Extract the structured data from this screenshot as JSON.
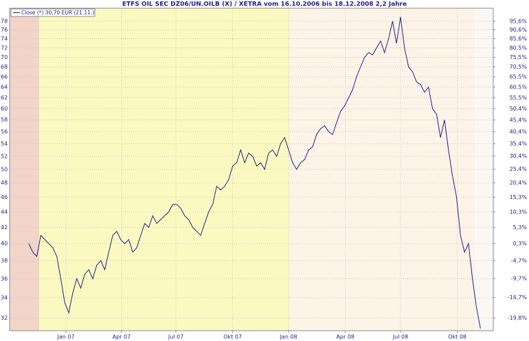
{
  "chart_data": {
    "type": "line",
    "title": "ETFS OIL SEC DZ06/UN.OILB (X) / XETRA vom 16.10.2006 bis 18.12.2008 2,2 Jahre",
    "log_scale": true,
    "grid": true,
    "legend": "top-left",
    "series": [
      {
        "name": "Close (*) 30,70 EUR (21.11.)",
        "color": "#1f1f8f",
        "values": [
          40,
          39,
          38.5,
          41,
          40.5,
          40,
          39.5,
          38.5,
          36,
          33.5,
          32.5,
          34.5,
          36,
          35,
          36.5,
          37,
          36,
          37.5,
          38,
          37,
          39,
          41,
          41.5,
          40.5,
          40,
          40.5,
          39,
          39.5,
          41,
          42.5,
          42,
          43.5,
          42.5,
          43,
          43.5,
          44,
          45,
          45,
          44.5,
          43.5,
          43,
          42,
          41.5,
          41,
          42.5,
          44,
          45,
          47.5,
          47,
          47.5,
          48.5,
          50.5,
          51,
          53,
          51,
          52.5,
          52,
          50.5,
          51,
          50,
          52.5,
          53,
          52,
          54,
          55,
          53,
          51,
          50,
          51,
          51.5,
          53,
          53.5,
          55.5,
          56.5,
          57,
          56,
          55.5,
          57.5,
          59.5,
          60.5,
          62,
          63.5,
          66,
          68,
          70,
          71,
          70.5,
          72,
          73.5,
          71,
          74,
          78,
          73,
          79,
          72,
          68,
          67,
          65,
          64.5,
          63,
          64,
          60,
          59,
          55,
          58,
          53,
          49,
          46,
          41,
          39,
          40,
          36,
          33,
          31
        ]
      }
    ],
    "xlim": [
      -4.8,
      116.2
    ],
    "xticks": [
      {
        "value": 9.3,
        "label": "Jan 07"
      },
      {
        "value": 23.2,
        "label": "Apr 07"
      },
      {
        "value": 36.8,
        "label": "Jul 07"
      },
      {
        "value": 51,
        "label": "Okt 07"
      },
      {
        "value": 65,
        "label": "Jan 08"
      },
      {
        "value": 79.2,
        "label": "Apr 08"
      },
      {
        "value": 93,
        "label": "Jul 08"
      },
      {
        "value": 107.2,
        "label": "Okt 08"
      }
    ],
    "ylim": [
      30.8,
      81.1
    ],
    "yticks": [
      32,
      34,
      36,
      38,
      40,
      42,
      44,
      46,
      48,
      50,
      52,
      54,
      56,
      58,
      60,
      62,
      64,
      66,
      68,
      70,
      72,
      74,
      76,
      78
    ],
    "y2lim": [
      -22.8,
      103.4
    ],
    "y2ticks": [
      {
        "value": 95.6,
        "label": "95,6%"
      },
      {
        "value": 90.6,
        "label": "90,6%"
      },
      {
        "value": 85.6,
        "label": "85,6%"
      },
      {
        "value": 80.5,
        "label": "80,5%"
      },
      {
        "value": 75.5,
        "label": "75,5%"
      },
      {
        "value": 70.5,
        "label": "70,5%"
      },
      {
        "value": 65.5,
        "label": "65,5%"
      },
      {
        "value": 60.5,
        "label": "60,5%"
      },
      {
        "value": 55.5,
        "label": "55,5%"
      },
      {
        "value": 50.4,
        "label": "50,4%"
      },
      {
        "value": 45.4,
        "label": "45,4%"
      },
      {
        "value": 40.4,
        "label": "40,4%"
      },
      {
        "value": 35.4,
        "label": "35,4%"
      },
      {
        "value": 30.4,
        "label": "30,4%"
      },
      {
        "value": 25.4,
        "label": "25,4%"
      },
      {
        "value": 20.4,
        "label": "20,4%"
      },
      {
        "value": 15.3,
        "label": "15,3%"
      },
      {
        "value": 10.3,
        "label": "10,3%"
      },
      {
        "value": 5.3,
        "label": "5,3%"
      },
      {
        "value": 0.3,
        "label": "0,3%"
      },
      {
        "value": -4.7,
        "label": "-4,7%"
      },
      {
        "value": -9.7,
        "label": "-9,7%"
      },
      {
        "value": -14.7,
        "label": "-14,7%"
      },
      {
        "value": -19.8,
        "label": "-19,8%"
      }
    ]
  }
}
